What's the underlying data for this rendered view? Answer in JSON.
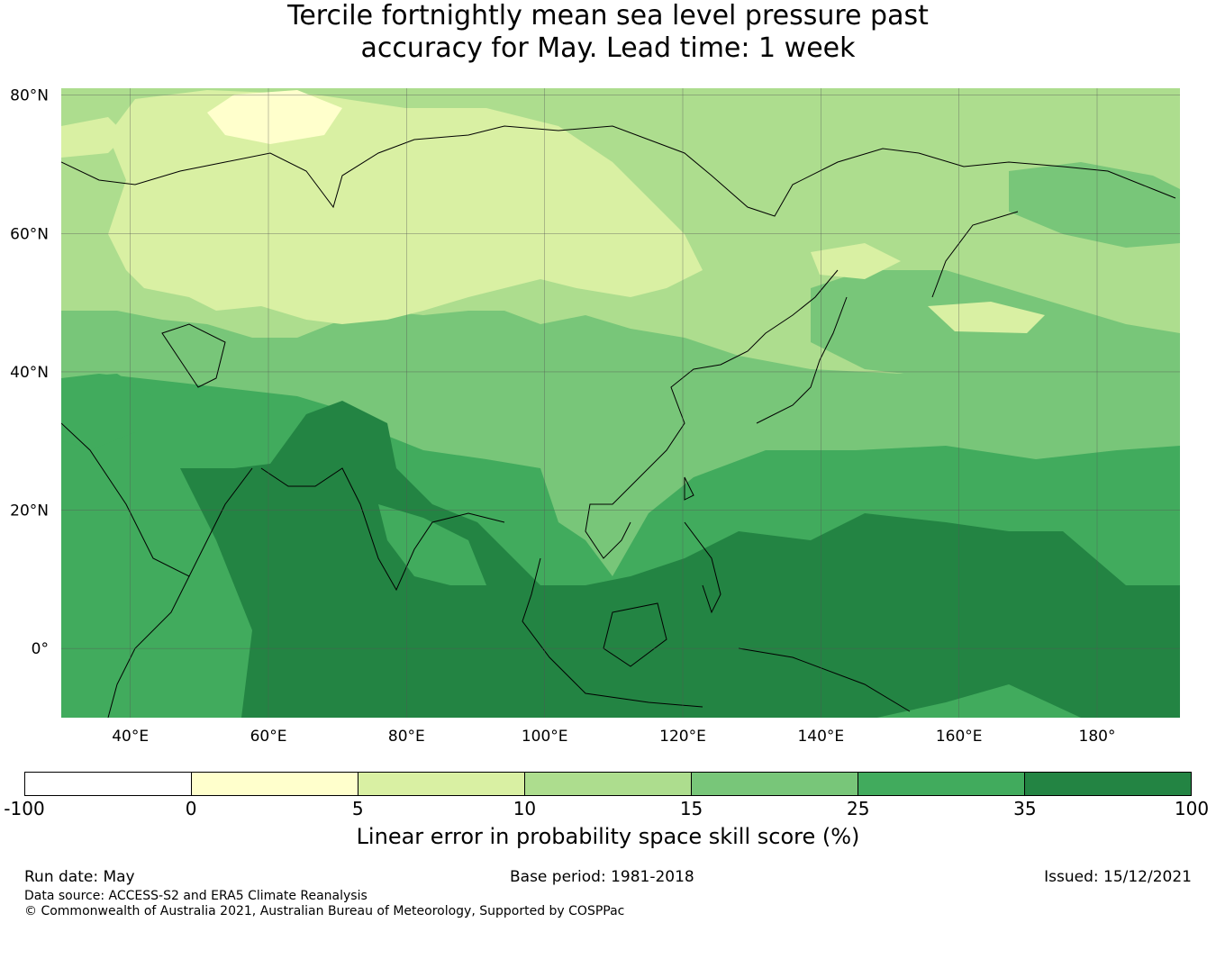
{
  "title_lines": [
    "Tercile fortnightly mean sea level pressure past",
    "accuracy for May. Lead time: 1 week"
  ],
  "map": {
    "lat_range": [
      -10,
      81
    ],
    "lon_range": [
      30,
      192
    ],
    "lat_ticks": [
      {
        "value": 80,
        "label": "80°N"
      },
      {
        "value": 60,
        "label": "60°N"
      },
      {
        "value": 40,
        "label": "40°N"
      },
      {
        "value": 20,
        "label": "20°N"
      },
      {
        "value": 0,
        "label": "0°"
      }
    ],
    "lon_ticks": [
      {
        "value": 40,
        "label": "40°E"
      },
      {
        "value": 60,
        "label": "60°E"
      },
      {
        "value": 80,
        "label": "80°E"
      },
      {
        "value": 100,
        "label": "100°E"
      },
      {
        "value": 120,
        "label": "120°E"
      },
      {
        "value": 140,
        "label": "140°E"
      },
      {
        "value": 160,
        "label": "160°E"
      },
      {
        "value": 180,
        "label": "180°"
      }
    ]
  },
  "colorbar": {
    "ticks": [
      "-100",
      "0",
      "5",
      "10",
      "15",
      "25",
      "35",
      "100"
    ],
    "colors": [
      "#ffffff",
      "#ffffcc",
      "#d9f0a3",
      "#addd8e",
      "#78c679",
      "#41ab5d",
      "#238443"
    ],
    "label": "Linear error in probability space skill score (%)"
  },
  "footer": {
    "run_date": "Run date: May",
    "base_period": "Base period: 1981-2018",
    "issued": "Issued: 15/12/2021",
    "data_source": "Data source: ACCESS-S2 and ERA5 Climate Reanalysis",
    "copyright": "© Commonwealth of Australia 2021, Australian Bureau of Meteorology, Supported by COSPPac"
  }
}
